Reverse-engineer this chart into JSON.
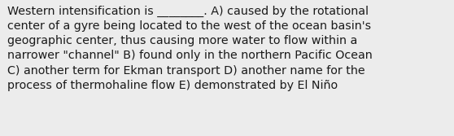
{
  "text": "Western intensification is ________. A) caused by the rotational\ncenter of a gyre being located to the west of the ocean basin's\ngeographic center, thus causing more water to flow within a\nnarrower \"channel\" B) found only in the northern Pacific Ocean\nC) another term for Ekman transport D) another name for the\nprocess of thermohaline flow E) demonstrated by El Niño",
  "background_color": "#ececec",
  "text_color": "#1a1a1a",
  "font_size": 10.3,
  "font_family": "DejaVu Sans",
  "fig_width": 5.58,
  "fig_height": 1.67,
  "dpi": 100
}
